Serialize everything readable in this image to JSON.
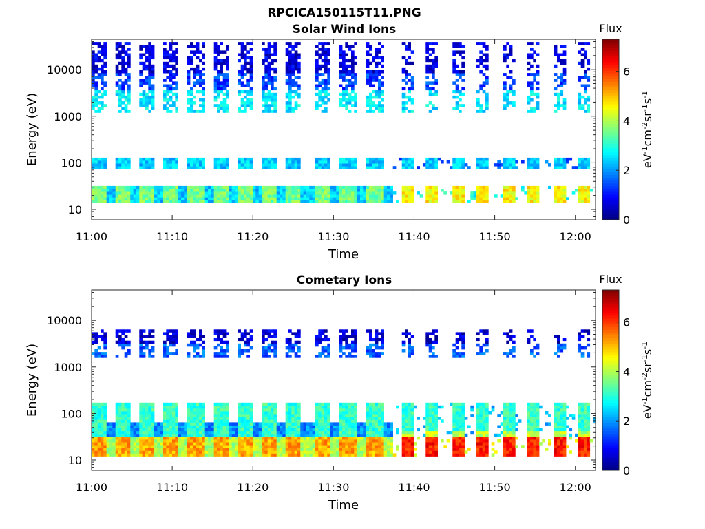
{
  "figure": {
    "title": "RPCICA150115T11.PNG"
  },
  "chart_data": [
    {
      "type": "heatmap",
      "title": "Solar Wind Ions",
      "xlabel": "Time",
      "ylabel": "Energy (eV)",
      "y_scale": "log",
      "ylim": [
        6,
        45000
      ],
      "y_ticks": [
        10,
        100,
        1000,
        10000
      ],
      "y_tick_labels": [
        "10",
        "100",
        "1000",
        "10000"
      ],
      "x_unit": "minutes since 11:00",
      "xlim": [
        0,
        62.5
      ],
      "x_ticks": [
        0,
        10,
        20,
        30,
        40,
        50,
        60
      ],
      "x_tick_labels": [
        "11:00",
        "11:10",
        "11:20",
        "11:30",
        "11:40",
        "11:50",
        "12:00"
      ],
      "colorbar": {
        "title": "Flux",
        "label": "eV-1cm-2sr-1s-1",
        "range": [
          0,
          7.3
        ],
        "ticks": [
          0,
          2,
          4,
          6
        ],
        "tick_labels": [
          "0",
          "2",
          "4",
          "6"
        ],
        "colormap": "jet"
      },
      "scan_phase1_times": [
        0.8,
        3.8,
        6.8,
        9.9,
        13.0,
        16.0,
        19.1,
        22.1,
        25.1,
        28.8,
        31.8,
        35.2
      ],
      "burst_times": [
        39.0,
        42.1,
        45.2,
        48.4,
        51.5,
        54.7,
        57.8,
        61.0
      ],
      "bands": [
        {
          "e_low": 14,
          "e_high": 30,
          "flux": 3.6
        },
        {
          "e_low": 75,
          "e_high": 130,
          "flux": 2.4
        },
        {
          "e_low": 1200,
          "e_high": 3500,
          "flux": 2.6
        },
        {
          "e_low": 3500,
          "e_high": 8000,
          "flux": 1.4
        },
        {
          "e_low": 8000,
          "e_high": 40000,
          "flux": 0.7
        }
      ]
    },
    {
      "type": "heatmap",
      "title": "Cometary Ions",
      "xlabel": "Time",
      "ylabel": "Energy (eV)",
      "y_scale": "log",
      "ylim": [
        6,
        45000
      ],
      "y_ticks": [
        10,
        100,
        1000,
        10000
      ],
      "y_tick_labels": [
        "10",
        "100",
        "1000",
        "10000"
      ],
      "x_unit": "minutes since 11:00",
      "xlim": [
        0,
        62.5
      ],
      "x_ticks": [
        0,
        10,
        20,
        30,
        40,
        50,
        60
      ],
      "x_tick_labels": [
        "11:00",
        "11:10",
        "11:20",
        "11:30",
        "11:40",
        "11:50",
        "12:00"
      ],
      "colorbar": {
        "title": "Flux",
        "label": "eV-1cm-2sr-1s-1",
        "range": [
          0,
          7.3
        ],
        "ticks": [
          0,
          2,
          4,
          6
        ],
        "tick_labels": [
          "0",
          "2",
          "4",
          "6"
        ],
        "colormap": "jet"
      },
      "scan_phase1_times": [
        0.8,
        3.8,
        6.8,
        9.9,
        13.0,
        16.0,
        19.1,
        22.1,
        25.1,
        28.8,
        31.8,
        35.2
      ],
      "burst_times": [
        39.0,
        42.1,
        45.2,
        48.4,
        51.5,
        54.7,
        57.8,
        61.0
      ],
      "bands": [
        {
          "e_low": 12,
          "e_high": 30,
          "flux": 5.2
        },
        {
          "e_low": 30,
          "e_high": 180,
          "flux": 3.1
        },
        {
          "e_low": 1500,
          "e_high": 3000,
          "flux": 1.6
        },
        {
          "e_low": 3000,
          "e_high": 6000,
          "flux": 0.6
        }
      ]
    }
  ]
}
